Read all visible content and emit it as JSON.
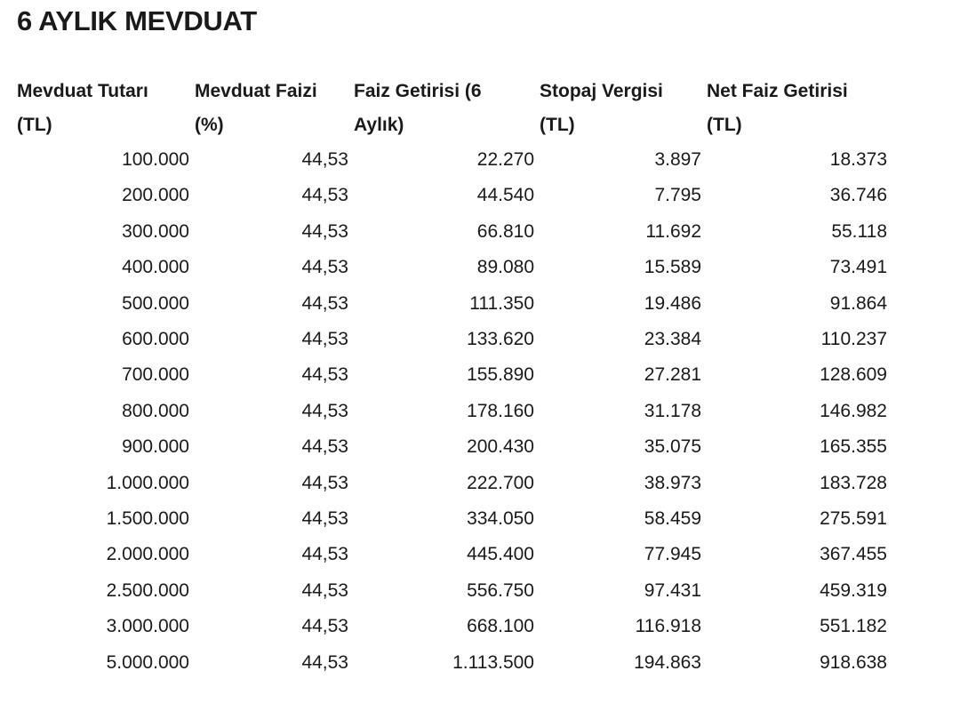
{
  "title": "6 AYLIK MEVDUAT",
  "table": {
    "headers": [
      [
        "Mevduat Tutarı",
        "(TL)"
      ],
      [
        "Mevduat Faizi",
        "(%)"
      ],
      [
        "Faiz Getirisi (6",
        "Aylık)"
      ],
      [
        "Stopaj Vergisi",
        "(TL)"
      ],
      [
        "Net Faiz Getirisi",
        "(TL)"
      ]
    ],
    "rows": [
      [
        "100.000",
        "44,53",
        "22.270",
        "3.897",
        "18.373"
      ],
      [
        "200.000",
        "44,53",
        "44.540",
        "7.795",
        "36.746"
      ],
      [
        "300.000",
        "44,53",
        "66.810",
        "11.692",
        "55.118"
      ],
      [
        "400.000",
        "44,53",
        "89.080",
        "15.589",
        "73.491"
      ],
      [
        "500.000",
        "44,53",
        "111.350",
        "19.486",
        "91.864"
      ],
      [
        "600.000",
        "44,53",
        "133.620",
        "23.384",
        "110.237"
      ],
      [
        "700.000",
        "44,53",
        "155.890",
        "27.281",
        "128.609"
      ],
      [
        "800.000",
        "44,53",
        "178.160",
        "31.178",
        "146.982"
      ],
      [
        "900.000",
        "44,53",
        "200.430",
        "35.075",
        "165.355"
      ],
      [
        "1.000.000",
        "44,53",
        "222.700",
        "38.973",
        "183.728"
      ],
      [
        "1.500.000",
        "44,53",
        "334.050",
        "58.459",
        "275.591"
      ],
      [
        "2.000.000",
        "44,53",
        "445.400",
        "77.945",
        "367.455"
      ],
      [
        "2.500.000",
        "44,53",
        "556.750",
        "97.431",
        "459.319"
      ],
      [
        "3.000.000",
        "44,53",
        "668.100",
        "116.918",
        "551.182"
      ],
      [
        "5.000.000",
        "44,53",
        "1.113.500",
        "194.863",
        "918.638"
      ]
    ]
  }
}
